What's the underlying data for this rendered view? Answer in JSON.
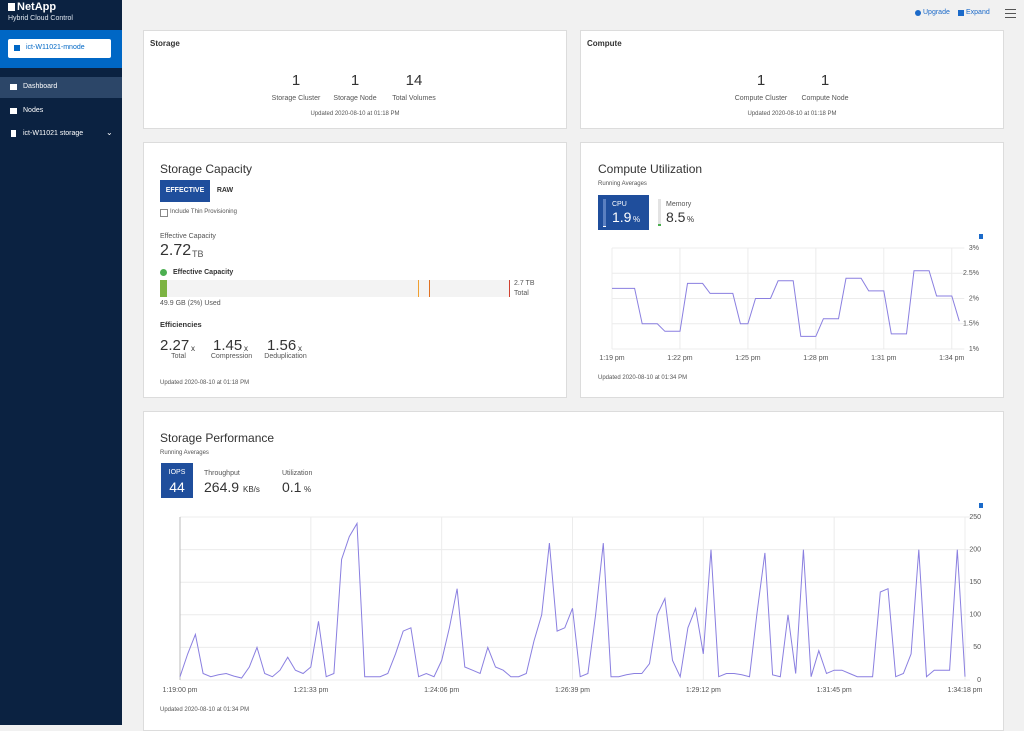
{
  "sidebar": {
    "brand": "NetApp",
    "product": "Hybrid Cloud Control",
    "mnode": "ict-W11021-mnode",
    "nav": [
      "Dashboard",
      "Nodes",
      "ict-W11021 storage"
    ]
  },
  "topbar": {
    "actions": [
      "Upgrade",
      "Expand"
    ]
  },
  "storage": {
    "title": "Storage",
    "stats": [
      {
        "value": 1,
        "label": "Storage Cluster"
      },
      {
        "value": 1,
        "label": "Storage Node"
      },
      {
        "value": 14,
        "label": "Total Volumes"
      }
    ],
    "updated": "Updated 2020-08-10 at 01:18 PM"
  },
  "compute": {
    "title": "Compute",
    "stats": [
      {
        "value": 1,
        "label": "Compute Cluster"
      },
      {
        "value": 1,
        "label": "Compute Node"
      }
    ],
    "updated": "Updated 2020-08-10 at 01:18 PM"
  },
  "storage_capacity": {
    "title": "Storage Capacity",
    "tabs": [
      "EFFECTIVE",
      "RAW"
    ],
    "checkbox": "Include Thin Provisioning",
    "capacity_label": "Effective Capacity",
    "capacity_value": 2.72,
    "capacity_unit": "TB",
    "legend": "Effective Capacity",
    "used_label": "49.9 GB (2%) Used",
    "used_percent": 2,
    "total_value": "2.7 TB",
    "total_label": "Total",
    "efficiencies_title": "Efficiencies",
    "efficiencies": [
      {
        "value": 2.27,
        "unit": "x",
        "label": "Total"
      },
      {
        "value": 1.45,
        "unit": "x",
        "label": "Compression"
      },
      {
        "value": 1.56,
        "unit": "x",
        "label": "Deduplication"
      }
    ],
    "updated": "Updated 2020-08-10 at 01:18 PM"
  },
  "compute_utilization": {
    "title": "Compute Utilization",
    "subtitle": "Running Averages",
    "metrics": [
      {
        "label": "CPU",
        "value": 1.9,
        "unit": "%"
      },
      {
        "label": "Memory",
        "value": 8.5,
        "unit": "%"
      }
    ],
    "updated": "Updated 2020-08-10 at 01:34 PM"
  },
  "storage_performance": {
    "title": "Storage Performance",
    "subtitle": "Running Averages",
    "metrics": [
      {
        "label": "IOPS",
        "value": 44
      },
      {
        "label": "Throughput",
        "value": 264.9,
        "unit": "KB/s"
      },
      {
        "label": "Utilization",
        "value": 0.1,
        "unit": "%"
      }
    ],
    "updated": "Updated 2020-08-10 at 01:34 PM"
  },
  "chart_data": [
    {
      "type": "line",
      "grid": true,
      "categories": [
        "1:19 pm",
        null,
        null,
        null,
        null,
        null,
        null,
        null,
        null,
        "1:22 pm",
        null,
        null,
        null,
        null,
        null,
        null,
        null,
        null,
        "1:25 pm",
        null,
        null,
        null,
        null,
        null,
        null,
        null,
        null,
        "1:28 pm",
        null,
        null,
        null,
        null,
        null,
        null,
        null,
        null,
        "1:31 pm",
        null,
        null,
        null,
        null,
        null,
        null,
        null,
        null,
        "1:34 pm",
        null
      ],
      "series": [
        {
          "color": "#8a7fe0",
          "values": [
            2.2,
            2.2,
            2.2,
            2.2,
            1.5,
            1.5,
            1.5,
            1.35,
            1.35,
            1.35,
            2.3,
            2.3,
            2.3,
            2.1,
            2.1,
            2.1,
            2.1,
            1.5,
            1.5,
            2.0,
            2.0,
            2.0,
            2.35,
            2.35,
            2.35,
            1.25,
            1.25,
            1.25,
            1.6,
            1.6,
            1.6,
            2.4,
            2.4,
            2.4,
            2.15,
            2.15,
            2.15,
            1.3,
            1.3,
            1.3,
            2.55,
            2.55,
            2.55,
            2.05,
            2.05,
            2.05,
            1.55
          ]
        }
      ],
      "ylim": [
        1,
        3
      ],
      "yticks": [
        {
          "value": 1,
          "label": "1%"
        },
        {
          "value": 1.5,
          "label": "1.5%"
        },
        {
          "value": 2,
          "label": "2%"
        },
        {
          "value": 2.5,
          "label": "2.5%"
        },
        {
          "value": 3,
          "label": "3%"
        }
      ]
    },
    {
      "type": "line",
      "grid": true,
      "categories": [
        "1:19:00 pm",
        null,
        null,
        null,
        null,
        null,
        null,
        null,
        null,
        null,
        null,
        null,
        null,
        null,
        null,
        null,
        null,
        "1:21:33 pm",
        null,
        null,
        null,
        null,
        null,
        null,
        null,
        null,
        null,
        null,
        null,
        null,
        null,
        null,
        null,
        null,
        "1:24:06 pm",
        null,
        null,
        null,
        null,
        null,
        null,
        null,
        null,
        null,
        null,
        null,
        null,
        null,
        null,
        null,
        null,
        "1:26:39 pm",
        null,
        null,
        null,
        null,
        null,
        null,
        null,
        null,
        null,
        null,
        null,
        null,
        null,
        null,
        null,
        null,
        "1:29:12 pm",
        null,
        null,
        null,
        null,
        null,
        null,
        null,
        null,
        null,
        null,
        null,
        null,
        null,
        null,
        null,
        null,
        "1:31:45 pm",
        null,
        null,
        null,
        null,
        null,
        null,
        null,
        null,
        null,
        null,
        null,
        null,
        null,
        null,
        null,
        null,
        "1:34:18 pm"
      ],
      "series": [
        {
          "color": "#8a7fe0",
          "values": [
            5,
            40,
            70,
            10,
            5,
            8,
            10,
            6,
            3,
            20,
            50,
            10,
            5,
            15,
            35,
            15,
            10,
            20,
            90,
            5,
            10,
            185,
            220,
            240,
            5,
            5,
            5,
            10,
            40,
            75,
            80,
            5,
            10,
            5,
            30,
            80,
            140,
            20,
            15,
            10,
            50,
            20,
            15,
            5,
            5,
            10,
            60,
            100,
            210,
            75,
            80,
            110,
            5,
            10,
            100,
            210,
            5,
            5,
            8,
            10,
            10,
            25,
            100,
            125,
            30,
            5,
            80,
            110,
            40,
            200,
            5,
            10,
            10,
            8,
            5,
            105,
            195,
            8,
            5,
            100,
            10,
            200,
            5,
            45,
            10,
            15,
            15,
            10,
            5,
            5,
            5,
            135,
            140,
            5,
            10,
            40,
            200,
            5,
            15,
            15,
            15,
            200,
            5
          ]
        }
      ],
      "ylim": [
        0,
        250
      ],
      "yticks": [
        0,
        50,
        100,
        150,
        200,
        250
      ]
    }
  ]
}
